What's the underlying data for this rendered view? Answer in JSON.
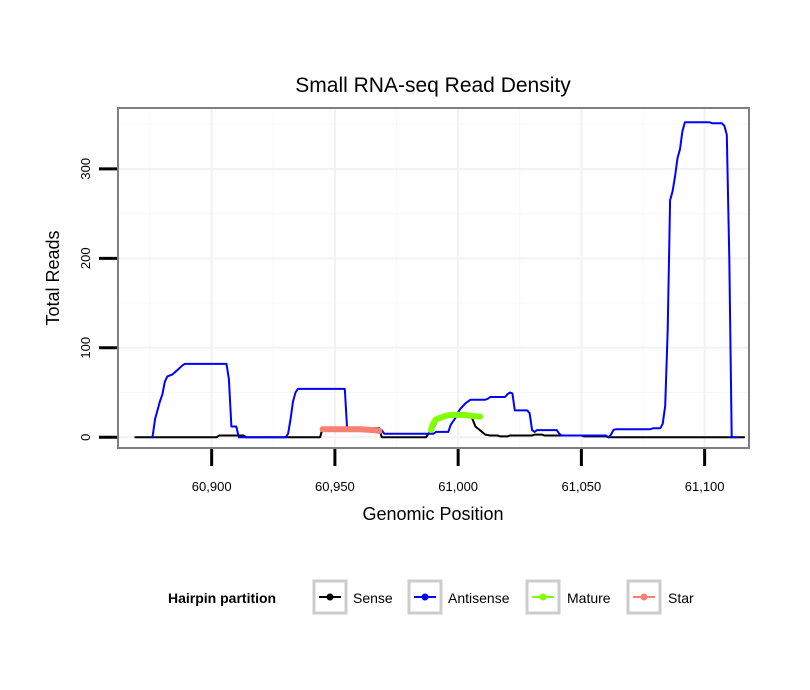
{
  "chart_data": {
    "type": "line",
    "title": "Small RNA-seq Read Density",
    "xlabel": "Genomic Position",
    "ylabel": "Total Reads",
    "xlim": [
      60862,
      61118
    ],
    "ylim": [
      -12,
      368
    ],
    "x_ticks": [
      60900,
      60950,
      61000,
      61050,
      61100
    ],
    "x_tick_labels": [
      "60,900",
      "60,950",
      "61,000",
      "61,050",
      "61,100"
    ],
    "y_ticks": [
      0,
      100,
      200,
      300
    ],
    "y_tick_labels": [
      "0",
      "100",
      "200",
      "300"
    ],
    "grid": true,
    "legend": {
      "title": "Hairpin partition",
      "position": "bottom",
      "entries": [
        "Sense",
        "Antisense",
        "Mature",
        "Star"
      ]
    },
    "series": [
      {
        "name": "Sense",
        "color": "#000000",
        "width": 2,
        "points": [
          [
            60869,
            0
          ],
          [
            60902,
            0
          ],
          [
            60903,
            2
          ],
          [
            60913,
            2
          ],
          [
            60914,
            0
          ],
          [
            60944,
            0
          ],
          [
            60945,
            10
          ],
          [
            60968,
            10
          ],
          [
            60969,
            0
          ],
          [
            60987,
            0
          ],
          [
            60988,
            4
          ],
          [
            60990,
            10
          ],
          [
            60992,
            22
          ],
          [
            60996,
            26
          ],
          [
            61005,
            26
          ],
          [
            61007,
            12
          ],
          [
            61011,
            3
          ],
          [
            61013,
            2
          ],
          [
            61016,
            2
          ],
          [
            61017,
            1
          ],
          [
            61020,
            1
          ],
          [
            61021,
            2
          ],
          [
            61030,
            2
          ],
          [
            61031,
            3
          ],
          [
            61034,
            3
          ],
          [
            61035,
            2
          ],
          [
            61050,
            2
          ],
          [
            61051,
            1
          ],
          [
            61060,
            1
          ],
          [
            61061,
            0
          ],
          [
            61116,
            0
          ]
        ]
      },
      {
        "name": "Antisense",
        "color": "#0000ff",
        "width": 2,
        "points": [
          [
            60876,
            0
          ],
          [
            60877,
            20
          ],
          [
            60879,
            40
          ],
          [
            60880,
            48
          ],
          [
            60881,
            62
          ],
          [
            60882,
            68
          ],
          [
            60884,
            70
          ],
          [
            60886,
            75
          ],
          [
            60888,
            80
          ],
          [
            60889,
            82
          ],
          [
            60906,
            82
          ],
          [
            60907,
            65
          ],
          [
            60908,
            12
          ],
          [
            60910,
            12
          ],
          [
            60911,
            0
          ],
          [
            60930,
            0
          ],
          [
            60931,
            4
          ],
          [
            60932,
            20
          ],
          [
            60933,
            40
          ],
          [
            60934,
            50
          ],
          [
            60935,
            54
          ],
          [
            60954,
            54
          ],
          [
            60955,
            8
          ],
          [
            60969,
            8
          ],
          [
            60970,
            4
          ],
          [
            60990,
            4
          ],
          [
            60991,
            6
          ],
          [
            60996,
            6
          ],
          [
            60997,
            14
          ],
          [
            60999,
            22
          ],
          [
            61000,
            28
          ],
          [
            61001,
            32
          ],
          [
            61003,
            38
          ],
          [
            61005,
            42
          ],
          [
            61011,
            42
          ],
          [
            61012,
            43
          ],
          [
            61013,
            45
          ],
          [
            61019,
            45
          ],
          [
            61020,
            48
          ],
          [
            61021,
            50
          ],
          [
            61022,
            49
          ],
          [
            61023,
            30
          ],
          [
            61028,
            30
          ],
          [
            61029,
            27
          ],
          [
            61030,
            8
          ],
          [
            61031,
            6
          ],
          [
            61032,
            8
          ],
          [
            61040,
            8
          ],
          [
            61041,
            4
          ],
          [
            61042,
            2
          ],
          [
            61060,
            2
          ],
          [
            61061,
            0
          ],
          [
            61062,
            3
          ],
          [
            61063,
            8
          ],
          [
            61064,
            9
          ],
          [
            61078,
            9
          ],
          [
            61079,
            10
          ],
          [
            61082,
            10
          ],
          [
            61083,
            15
          ],
          [
            61084,
            35
          ],
          [
            61085,
            120
          ],
          [
            61086,
            265
          ],
          [
            61087,
            275
          ],
          [
            61088,
            292
          ],
          [
            61089,
            312
          ],
          [
            61090,
            322
          ],
          [
            61091,
            342
          ],
          [
            61092,
            352
          ],
          [
            61102,
            352
          ],
          [
            61103,
            351
          ],
          [
            61107,
            351
          ],
          [
            61108,
            348
          ],
          [
            61109,
            338
          ],
          [
            61110,
            200
          ],
          [
            61111,
            0
          ],
          [
            61113,
            0
          ]
        ]
      },
      {
        "name": "Mature",
        "color": "#7fff00",
        "width": 6,
        "points": [
          [
            60989,
            8
          ],
          [
            60990,
            16
          ],
          [
            60991,
            20
          ],
          [
            60993,
            22
          ],
          [
            60995,
            24
          ],
          [
            60997,
            25
          ],
          [
            61002,
            25
          ],
          [
            61005,
            24
          ],
          [
            61009,
            23
          ]
        ]
      },
      {
        "name": "Star",
        "color": "#f88072",
        "width": 6,
        "points": [
          [
            60945,
            9
          ],
          [
            60960,
            9
          ],
          [
            60966,
            8
          ],
          [
            60968,
            7
          ]
        ]
      }
    ]
  }
}
